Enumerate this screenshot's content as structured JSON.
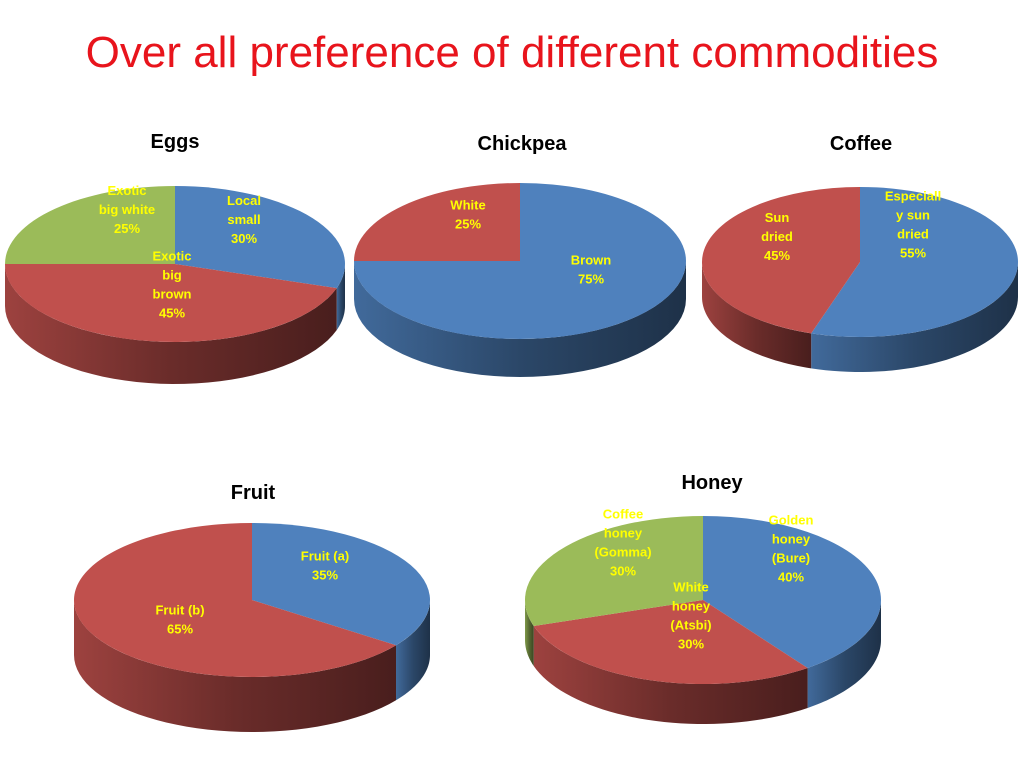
{
  "title": "Over all preference of different commodities",
  "colors": {
    "blue": "#4f81bd",
    "red": "#c0504d",
    "green": "#9bbb59",
    "label": "#ffff00"
  },
  "chart_data": [
    {
      "type": "pie",
      "title": "Eggs",
      "slices": [
        {
          "label": [
            "Local",
            "small",
            "30%"
          ],
          "value": 30,
          "color": "blue"
        },
        {
          "label": [
            "Exotic",
            "big",
            "brown",
            "45%"
          ],
          "value": 45,
          "color": "red"
        },
        {
          "label": [
            "Exotic",
            "big white",
            "25%"
          ],
          "value": 25,
          "color": "green"
        }
      ]
    },
    {
      "type": "pie",
      "title": "Chickpea",
      "slices": [
        {
          "label": [
            "Brown",
            "75%"
          ],
          "value": 75,
          "color": "blue"
        },
        {
          "label": [
            "White",
            "25%"
          ],
          "value": 25,
          "color": "red"
        }
      ]
    },
    {
      "type": "pie",
      "title": "Coffee",
      "slices": [
        {
          "label": [
            "Especiall",
            "y sun",
            "dried",
            "55%"
          ],
          "value": 55,
          "color": "blue"
        },
        {
          "label": [
            "Sun",
            "dried",
            "45%"
          ],
          "value": 45,
          "color": "red"
        }
      ]
    },
    {
      "type": "pie",
      "title": "Fruit",
      "slices": [
        {
          "label": [
            "Fruit (a)",
            "35%"
          ],
          "value": 35,
          "color": "blue"
        },
        {
          "label": [
            "Fruit (b)",
            "65%"
          ],
          "value": 65,
          "color": "red"
        }
      ]
    },
    {
      "type": "pie",
      "title": "Honey",
      "slices": [
        {
          "label": [
            "Golden",
            "honey",
            "(Bure)",
            "40%"
          ],
          "value": 40,
          "color": "blue"
        },
        {
          "label": [
            "White",
            "honey",
            "(Atsbi)",
            "30%"
          ],
          "value": 30,
          "color": "red"
        },
        {
          "label": [
            "Coffee",
            "honey",
            "(Gomma)",
            "30%"
          ],
          "value": 30,
          "color": "green"
        }
      ]
    }
  ]
}
